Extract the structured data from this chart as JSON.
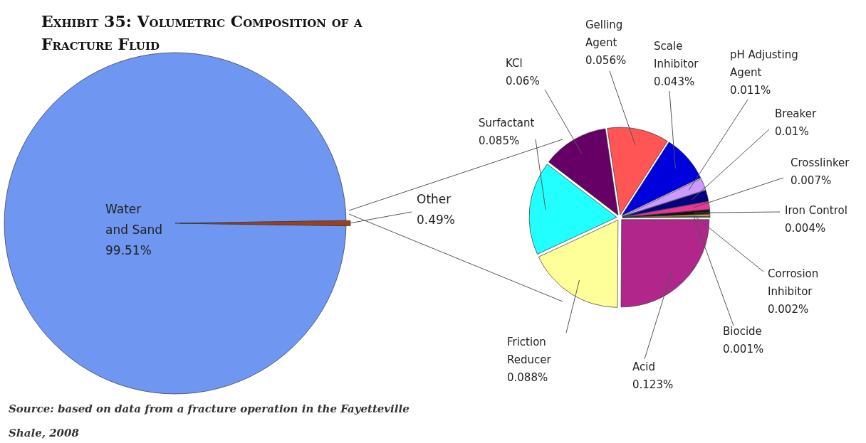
{
  "chart_data": [
    {
      "type": "pie",
      "title": "Exhibit 35: Volumetric Composition of a Fracture Fluid",
      "annotations": [
        "Source: based on data from a fracture operation in the Fayetteville Shale, 2008"
      ],
      "categories": [
        "Water and Sand",
        "Other"
      ],
      "values": [
        99.51,
        0.49
      ],
      "colors": [
        "#6f96f0",
        "#a0401a"
      ],
      "value_labels": [
        "99.51%",
        "0.49%"
      ]
    },
    {
      "type": "pie",
      "categories": [
        "Acid",
        "Friction Reducer",
        "Surfactant",
        "KCl",
        "Gelling Agent",
        "Scale Inhibitor",
        "pH Adjusting Agent",
        "Breaker",
        "Crosslinker",
        "Iron Control",
        "Corrosion Inhibitor",
        "Biocide"
      ],
      "values": [
        0.123,
        0.088,
        0.085,
        0.06,
        0.056,
        0.043,
        0.011,
        0.01,
        0.007,
        0.004,
        0.002,
        0.001
      ],
      "colors": [
        "#b0268a",
        "#ffff99",
        "#22ffff",
        "#660066",
        "#ff5555",
        "#0000dd",
        "#cc99ff",
        "#000080",
        "#ee3399",
        "#111111",
        "#c8a030",
        "#a0a0a0"
      ],
      "value_labels": [
        "0.123%",
        "0.088%",
        "0.085%",
        "0.06%",
        "0.056%",
        "0.043%",
        "0.011%",
        "0.01%",
        "0.007%",
        "0.004%",
        "0.002%",
        "0.001%"
      ]
    }
  ]
}
